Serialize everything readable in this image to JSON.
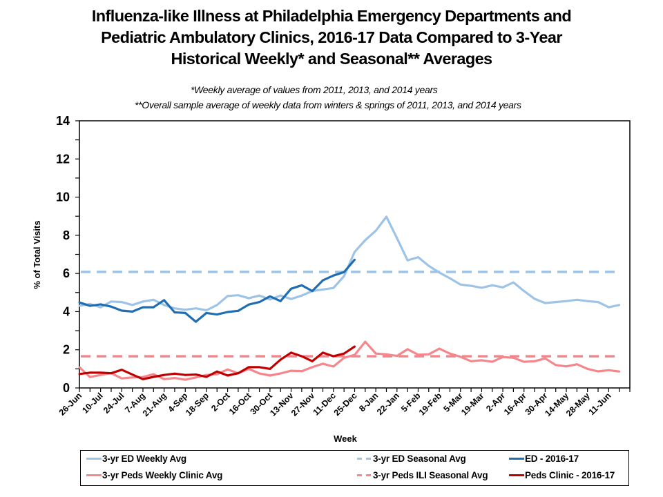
{
  "chart_data": {
    "type": "line",
    "title_lines": [
      "Influenza-like Illness at Philadelphia Emergency Departments and",
      "Pediatric Ambulatory Clinics, 2016-17 Data Compared to 3-Year",
      "Historical Weekly* and Seasonal** Averages"
    ],
    "notes": [
      "*Weekly average of values from 2011, 2013, and 2014 years",
      "**Overall sample average of weekly data from winters  & springs of 2011, 2013, and 2014 years"
    ],
    "xlabel": "Week",
    "ylabel": "% of Total  Visits",
    "ylim": [
      0,
      14
    ],
    "yticks": [
      0,
      2,
      4,
      6,
      8,
      10,
      12,
      14
    ],
    "num_categories": 53,
    "xtick_labels": [
      "26-Jun",
      "10-Jul",
      "24-Jul",
      "7-Aug",
      "21-Aug",
      "4-Sep",
      "18-Sep",
      "2-Oct",
      "16-Oct",
      "30-Oct",
      "13-Nov",
      "27-Nov",
      "11-Dec",
      "25-Dec",
      "8-Jan",
      "22-Jan",
      "5-Feb",
      "19-Feb",
      "5-Mar",
      "19-Mar",
      "2-Apr",
      "16-Apr",
      "30-Apr",
      "14-May",
      "28-May",
      "11-Jun"
    ],
    "xtick_label_every": 2,
    "grid": false,
    "legend_position": "bottom",
    "series": [
      {
        "name": "3-yr ED Weekly Avg",
        "color": "#9DC3E6",
        "style": "solid",
        "values": [
          4.3,
          4.4,
          4.23,
          4.53,
          4.5,
          4.35,
          4.53,
          4.62,
          4.35,
          4.17,
          4.1,
          4.17,
          4.07,
          4.35,
          4.82,
          4.86,
          4.7,
          4.84,
          4.64,
          4.84,
          4.66,
          4.84,
          5.08,
          5.16,
          5.24,
          5.86,
          7.13,
          7.74,
          8.24,
          8.97,
          7.85,
          6.69,
          6.85,
          6.4,
          6.05,
          5.75,
          5.42,
          5.35,
          5.25,
          5.38,
          5.27,
          5.53,
          5.08,
          4.67,
          4.45,
          4.5,
          4.55,
          4.62,
          4.55,
          4.5,
          4.23,
          4.35
        ]
      },
      {
        "name": "3-yr ED Seasonal Avg",
        "color": "#9DC3E6",
        "style": "dashed",
        "constant": 6.08
      },
      {
        "name": "ED - 2016-17",
        "color": "#1F6DB2",
        "style": "solid",
        "values": [
          4.48,
          4.3,
          4.38,
          4.26,
          4.05,
          4.0,
          4.23,
          4.23,
          4.6,
          3.96,
          3.93,
          3.47,
          3.93,
          3.85,
          3.98,
          4.04,
          4.37,
          4.5,
          4.8,
          4.55,
          5.2,
          5.38,
          5.08,
          5.64,
          5.89,
          6.07,
          6.72
        ]
      },
      {
        "name": "3-yr Peds Weekly Clinic Avg",
        "color": "#F4868C",
        "style": "solid",
        "values": [
          1.08,
          0.57,
          0.68,
          0.77,
          0.5,
          0.55,
          0.57,
          0.72,
          0.46,
          0.52,
          0.43,
          0.55,
          0.68,
          0.72,
          0.97,
          0.77,
          1.0,
          0.76,
          0.65,
          0.76,
          0.9,
          0.88,
          1.09,
          1.27,
          1.12,
          1.58,
          1.73,
          2.42,
          1.8,
          1.76,
          1.68,
          2.03,
          1.74,
          1.76,
          2.06,
          1.8,
          1.63,
          1.4,
          1.45,
          1.37,
          1.62,
          1.58,
          1.37,
          1.4,
          1.55,
          1.2,
          1.13,
          1.24,
          1.0,
          0.87,
          0.93,
          0.86
        ]
      },
      {
        "name": "3-yr Peds ILI Seasonal Avg",
        "color": "#F4868C",
        "style": "dashed",
        "constant": 1.66
      },
      {
        "name": "Peds Clinic - 2016-17",
        "color": "#C00000",
        "style": "solid",
        "values": [
          0.73,
          0.8,
          0.8,
          0.77,
          0.95,
          0.7,
          0.46,
          0.58,
          0.68,
          0.75,
          0.68,
          0.7,
          0.58,
          0.86,
          0.65,
          0.77,
          1.09,
          1.09,
          1.0,
          1.48,
          1.85,
          1.66,
          1.4,
          1.85,
          1.66,
          1.8,
          2.17
        ]
      }
    ]
  },
  "legend": {
    "items": [
      {
        "label": "3-yr ED Weekly Avg",
        "color": "#9DC3E6",
        "style": "solid"
      },
      {
        "label": "3-yr ED Seasonal Avg",
        "color": "#9DC3E6",
        "style": "dashed"
      },
      {
        "label": "ED - 2016-17",
        "color": "#1F6DB2",
        "style": "solid"
      },
      {
        "label": "3-yr Peds Weekly Clinic Avg",
        "color": "#F4868C",
        "style": "solid"
      },
      {
        "label": "3-yr Peds ILI Seasonal Avg",
        "color": "#F4868C",
        "style": "dashed"
      },
      {
        "label": "Peds Clinic - 2016-17",
        "color": "#C00000",
        "style": "solid"
      }
    ]
  }
}
